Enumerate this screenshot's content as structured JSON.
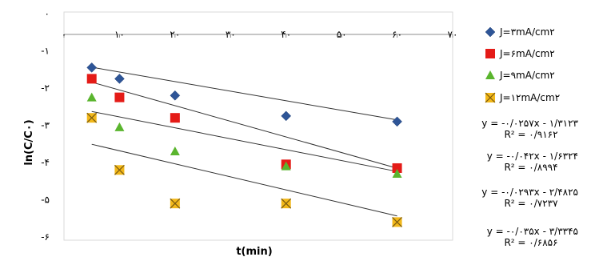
{
  "chart_data": {
    "type": "scatter",
    "xlabel": "t(min)",
    "ylabel": "ln(C/C۰)",
    "xlim": [
      0,
      70
    ],
    "ylim": [
      -6,
      0
    ],
    "x_ticks": [
      {
        "value": 0,
        "label": "۰"
      },
      {
        "value": 10,
        "label": "۱۰"
      },
      {
        "value": 20,
        "label": "۲۰"
      },
      {
        "value": 30,
        "label": "۳۰"
      },
      {
        "value": 40,
        "label": "۴۰"
      },
      {
        "value": 50,
        "label": "۵۰"
      },
      {
        "value": 60,
        "label": "۶۰"
      },
      {
        "value": 70,
        "label": "۷۰"
      }
    ],
    "y_ticks": [
      {
        "value": 0,
        "label": "۰"
      },
      {
        "value": -1,
        "label": "-۱"
      },
      {
        "value": -2,
        "label": "-۲"
      },
      {
        "value": -3,
        "label": "-۳"
      },
      {
        "value": -4,
        "label": "-۴"
      },
      {
        "value": -5,
        "label": "-۵"
      },
      {
        "value": -6,
        "label": "-۶"
      }
    ],
    "grid": false,
    "legend_position": "right",
    "series": [
      {
        "name": "J=۳mA/cm۲",
        "marker": "diamond",
        "color": "#2e5597",
        "x": [
          5,
          10,
          20,
          40,
          60
        ],
        "y": [
          -1.45,
          -1.75,
          -2.2,
          -2.75,
          -2.9
        ],
        "trend": {
          "slope": -0.0257,
          "intercept": -1.3123
        },
        "equation": "y = -۰/۰۲۵۷x - ۱/۳۱۲۳",
        "r2": "R² = ۰/۹۱۶۲"
      },
      {
        "name": "J=۶mA/cm۲",
        "marker": "square",
        "color": "#e41b17",
        "x": [
          5,
          10,
          20,
          40,
          60
        ],
        "y": [
          -1.75,
          -2.25,
          -2.8,
          -4.05,
          -4.15
        ],
        "trend": {
          "slope": -0.042,
          "intercept": -1.6324
        },
        "equation": "y = -۰/۰۴۲x - ۱/۶۳۲۴",
        "r2": "R² = ۰/۸۹۹۴"
      },
      {
        "name": "J=۹mA/cm۲",
        "marker": "triangle",
        "color": "#5ab52e",
        "x": [
          5,
          10,
          20,
          40,
          60
        ],
        "y": [
          -2.25,
          -3.05,
          -3.7,
          -4.1,
          -4.3
        ],
        "trend": {
          "slope": -0.0293,
          "intercept": -2.4825
        },
        "equation": "y = -۰/۰۲۹۳x - ۲/۴۸۲۵",
        "r2": "R² = ۰/۷۲۳۷"
      },
      {
        "name": "J=۱۲mA/cm۲",
        "marker": "x-square",
        "color": "#f2b81a",
        "x": [
          5,
          10,
          20,
          40,
          60
        ],
        "y": [
          -2.8,
          -4.2,
          -5.1,
          -5.1,
          -5.6
        ],
        "trend": {
          "slope": -0.035,
          "intercept": -3.3345
        },
        "equation": "y = -۰/۰۳۵x - ۳/۳۳۴۵",
        "r2": "R² = ۰/۶۸۵۶"
      }
    ]
  }
}
